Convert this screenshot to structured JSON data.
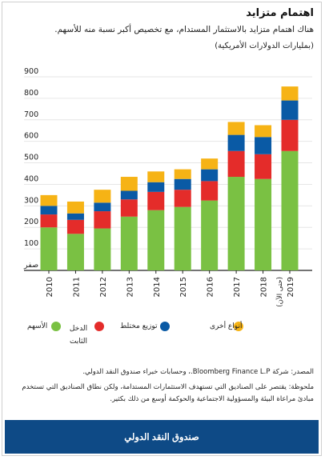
{
  "header": {
    "title": "اهتمام متزايد",
    "subtitle": "هناك اهتمام متزايد بالاستثمار المستدام، مع تخصيص أكبر نسبة منه للأسهم.",
    "units": "(بمليارات الدولارات الأمريكية)"
  },
  "chart_data": {
    "type": "bar",
    "stacked": true,
    "categories": [
      "2010",
      "2011",
      "2012",
      "2013",
      "2014",
      "2015",
      "2016",
      "2017",
      "2018",
      "2019"
    ],
    "category_note": "(حتى الآن)",
    "ylim": [
      0,
      900
    ],
    "yticks": [
      "صفر",
      "100",
      "200",
      "300",
      "400",
      "500",
      "600",
      "700",
      "800",
      "900"
    ],
    "grid": true,
    "legend_position": "bottom",
    "series": [
      {
        "name": "الأسهم",
        "color": "#7ac143",
        "values": [
          200,
          170,
          195,
          250,
          280,
          295,
          325,
          435,
          425,
          555
        ]
      },
      {
        "name": "الدخل الثابت",
        "color": "#e42c2a",
        "values": [
          60,
          65,
          80,
          80,
          85,
          80,
          90,
          120,
          115,
          145
        ]
      },
      {
        "name": "توزيع مختلط",
        "color": "#0a5aa5",
        "values": [
          40,
          30,
          40,
          40,
          45,
          50,
          55,
          75,
          80,
          90
        ]
      },
      {
        "name": "أنواع أخرى",
        "color": "#f6b315",
        "values": [
          50,
          55,
          60,
          65,
          50,
          45,
          50,
          60,
          55,
          65
        ]
      }
    ]
  },
  "notes": {
    "source": "المصدر: شركة Bloomberg Finance L.P.، وحسابات خبراء صندوق النقد الدولي.",
    "note": "ملحوظة: يقتصر على الصناديق التي تستهدف الاستثمارات المستدامة، ولكن نطاق الصناديق التي تستخدم مبادئ مراعاة البيئة والمسؤولية الاجتماعية والحوكمة أوسع من ذلك بكثير."
  },
  "footer": {
    "label": "صندوق النقد الدولي"
  }
}
